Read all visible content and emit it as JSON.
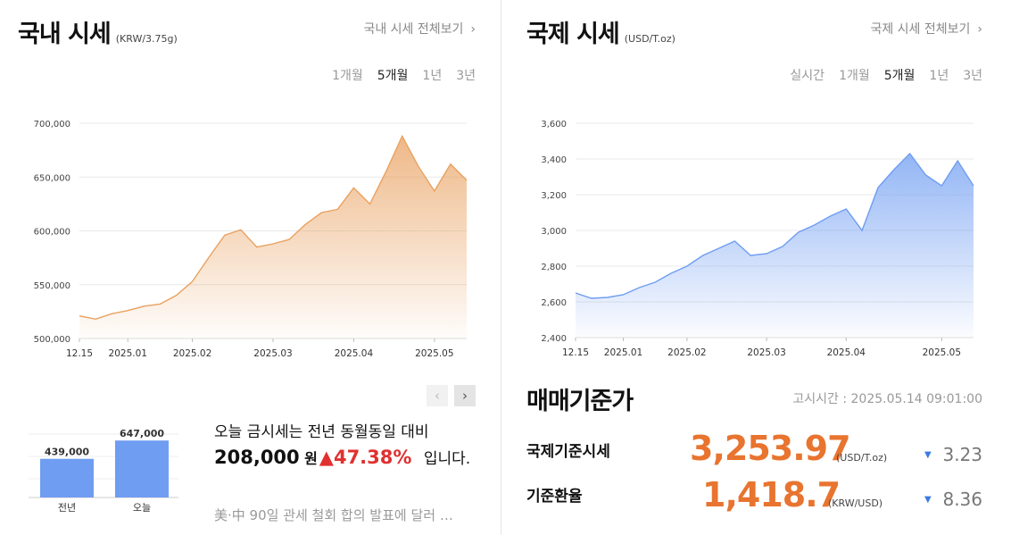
{
  "domestic": {
    "title": "국내 시세",
    "unit": "(KRW/3.75g)",
    "more_label": "국내 시세 전체보기",
    "periods": [
      "1개월",
      "5개월",
      "1년",
      "3년"
    ],
    "active_period": "5개월",
    "chart_data": {
      "type": "area",
      "ylim": [
        500000,
        700000
      ],
      "y_ticks": [
        "700,000",
        "650,000",
        "600,000",
        "550,000",
        "500,000"
      ],
      "x_ticks": [
        "12.15",
        "2025.01",
        "2025.02",
        "2025.03",
        "2025.04",
        "2025.05"
      ],
      "color": "#e9a160",
      "series": [
        {
          "points": [
            [
              "12.15",
              521000
            ],
            [
              "12.20",
              518000
            ],
            [
              "12.27",
              523000
            ],
            [
              "2025.01",
              526000
            ],
            [
              "01.10",
              530000
            ],
            [
              "01.17",
              532000
            ],
            [
              "01.24",
              540000
            ],
            [
              "2025.02",
              553000
            ],
            [
              "02.07",
              575000
            ],
            [
              "02.14",
              596000
            ],
            [
              "02.21",
              601000
            ],
            [
              "02.28",
              585000
            ],
            [
              "2025.03",
              588000
            ],
            [
              "03.07",
              592000
            ],
            [
              "03.14",
              606000
            ],
            [
              "03.21",
              617000
            ],
            [
              "03.28",
              620000
            ],
            [
              "2025.04",
              640000
            ],
            [
              "04.10",
              625000
            ],
            [
              "04.17",
              655000
            ],
            [
              "04.22",
              688000
            ],
            [
              "04.28",
              660000
            ],
            [
              "2025.05",
              637000
            ],
            [
              "05.07",
              662000
            ],
            [
              "05.14",
              647000
            ]
          ]
        }
      ]
    },
    "comparison": {
      "bars": [
        {
          "label": "전년",
          "value": 439000,
          "value_label": "439,000"
        },
        {
          "label": "오늘",
          "value": 647000,
          "value_label": "647,000"
        }
      ],
      "ylim": [
        0,
        720000
      ],
      "color": "#6f9df2"
    },
    "summary": {
      "prefix": "오늘 금시세는 전년 동월동일 대비",
      "amount": "208,000",
      "currency": "원",
      "arrow": "▲",
      "percent": "47.38%",
      "suffix": "입니다."
    },
    "news": "美·中 90일 관세 철회 합의 발표에 달러 …",
    "nav": {
      "prev": "‹",
      "next": "›"
    }
  },
  "international": {
    "title": "국제 시세",
    "unit": "(USD/T.oz)",
    "more_label": "국제 시세 전체보기",
    "periods": [
      "실시간",
      "1개월",
      "5개월",
      "1년",
      "3년"
    ],
    "active_period": "5개월",
    "chart_data": {
      "type": "area",
      "ylim": [
        2400,
        3600
      ],
      "y_ticks": [
        "3,600",
        "3,400",
        "3,200",
        "3,000",
        "2,800",
        "2,600",
        "2,400"
      ],
      "x_ticks": [
        "12.15",
        "2025.01",
        "2025.02",
        "2025.03",
        "2025.04",
        "2025.05"
      ],
      "color": "#6f9df2",
      "series": [
        {
          "points": [
            [
              "12.15",
              2650
            ],
            [
              "12.22",
              2620
            ],
            [
              "12.29",
              2625
            ],
            [
              "2025.01",
              2640
            ],
            [
              "01.10",
              2680
            ],
            [
              "01.17",
              2710
            ],
            [
              "01.24",
              2760
            ],
            [
              "2025.02",
              2800
            ],
            [
              "02.07",
              2860
            ],
            [
              "02.14",
              2900
            ],
            [
              "02.21",
              2940
            ],
            [
              "02.28",
              2860
            ],
            [
              "2025.03",
              2870
            ],
            [
              "03.07",
              2910
            ],
            [
              "03.14",
              2990
            ],
            [
              "03.21",
              3030
            ],
            [
              "03.28",
              3080
            ],
            [
              "2025.04",
              3120
            ],
            [
              "04.07",
              3000
            ],
            [
              "04.11",
              3240
            ],
            [
              "04.17",
              3340
            ],
            [
              "04.22",
              3430
            ],
            [
              "04.28",
              3310
            ],
            [
              "2025.05",
              3250
            ],
            [
              "05.07",
              3390
            ],
            [
              "05.14",
              3250
            ]
          ]
        }
      ]
    },
    "standard": {
      "title": "매매기준가",
      "notice": "고시시간 : 2025.05.14 09:01:00",
      "rows": [
        {
          "label": "국제기준시세",
          "value": "3,253.97",
          "unit": "(USD/T.oz)",
          "arrow": "▼",
          "change": "3.23"
        },
        {
          "label": "기준환율",
          "value": "1,418.7",
          "unit": "(KRW/USD)",
          "arrow": "▼",
          "change": "8.36"
        }
      ]
    }
  }
}
